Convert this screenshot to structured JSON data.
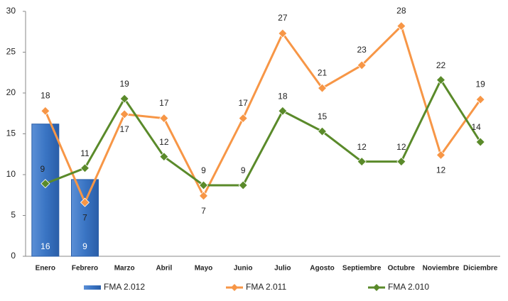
{
  "chart_data": {
    "type": "combo",
    "categories": [
      "Enero",
      "Febrero",
      "Marzo",
      "Abril",
      "Mayo",
      "Junio",
      "Julio",
      "Agosto",
      "Septiembre",
      "Octubre",
      "Noviembre",
      "Diciembre"
    ],
    "series": [
      {
        "name": "FMA 2.012",
        "type": "bar",
        "color": "#3a75c4",
        "values": [
          16.2,
          9.4,
          null,
          null,
          null,
          null,
          null,
          null,
          null,
          null,
          null,
          null
        ],
        "value_labels": [
          "16",
          "9",
          null,
          null,
          null,
          null,
          null,
          null,
          null,
          null,
          null,
          null
        ]
      },
      {
        "name": "FMA 2.011",
        "type": "line",
        "color": "#f79646",
        "values": [
          17.8,
          6.6,
          17.4,
          16.9,
          7.4,
          16.9,
          27.3,
          20.6,
          23.4,
          28.2,
          12.4,
          19.2
        ],
        "value_labels": [
          "18",
          "7",
          "17",
          "17",
          "7",
          "17",
          "27",
          "21",
          "23",
          "28",
          "12",
          "19"
        ]
      },
      {
        "name": "FMA 2.010",
        "type": "line",
        "color": "#5a8a2a",
        "values": [
          8.9,
          10.8,
          19.3,
          12.2,
          8.7,
          8.7,
          17.8,
          15.3,
          11.6,
          11.6,
          21.6,
          14.0
        ],
        "value_labels": [
          "9",
          "11",
          "19",
          "12",
          "9",
          "9",
          "18",
          "15",
          "12",
          "12",
          "22",
          "14"
        ]
      }
    ],
    "ylim": [
      0,
      30
    ],
    "yticks": [
      0,
      5,
      10,
      15,
      20,
      25,
      30
    ],
    "legend": "bottom"
  }
}
